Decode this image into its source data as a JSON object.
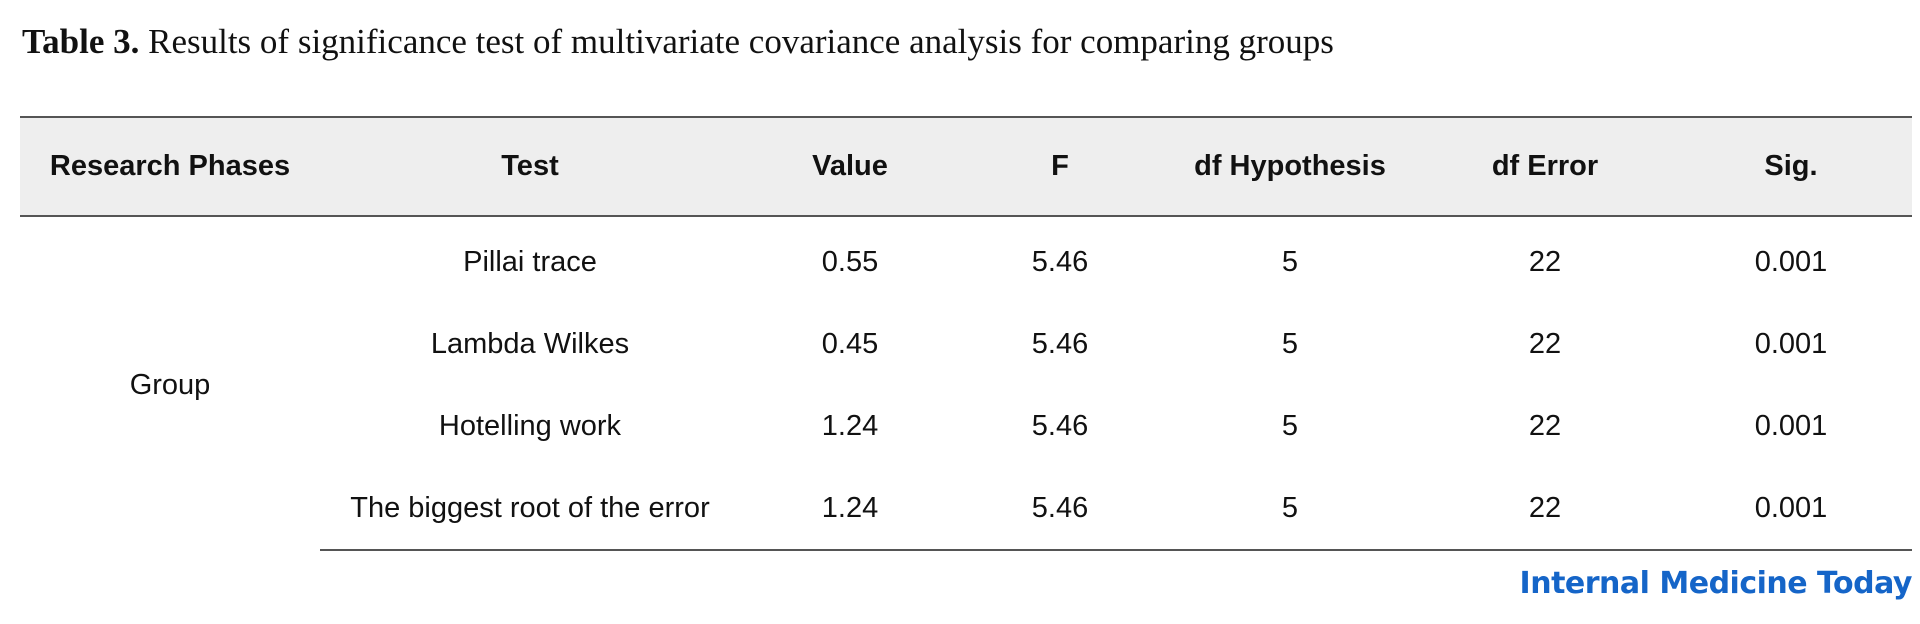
{
  "caption": {
    "label": "Table 3.",
    "text": "Results of significance test of multivariate covariance analysis for comparing groups"
  },
  "table": {
    "headers": [
      "Research Phases",
      "Test",
      "Value",
      "F",
      "df Hypothesis",
      "df Error",
      "Sig."
    ],
    "phase": "Group",
    "rows": [
      {
        "test": "Pillai trace",
        "value": "0.55",
        "f": "5.46",
        "df_hypothesis": "5",
        "df_error": "22",
        "sig": "0.001"
      },
      {
        "test": "Lambda Wilkes",
        "value": "0.45",
        "f": "5.46",
        "df_hypothesis": "5",
        "df_error": "22",
        "sig": "0.001"
      },
      {
        "test": "Hotelling work",
        "value": "1.24",
        "f": "5.46",
        "df_hypothesis": "5",
        "df_error": "22",
        "sig": "0.001"
      },
      {
        "test": "The biggest root of the error",
        "value": "1.24",
        "f": "5.46",
        "df_hypothesis": "5",
        "df_error": "22",
        "sig": "0.001"
      }
    ]
  },
  "brand": {
    "text": "Internal Medicine Today",
    "color": "#1565c8"
  }
}
